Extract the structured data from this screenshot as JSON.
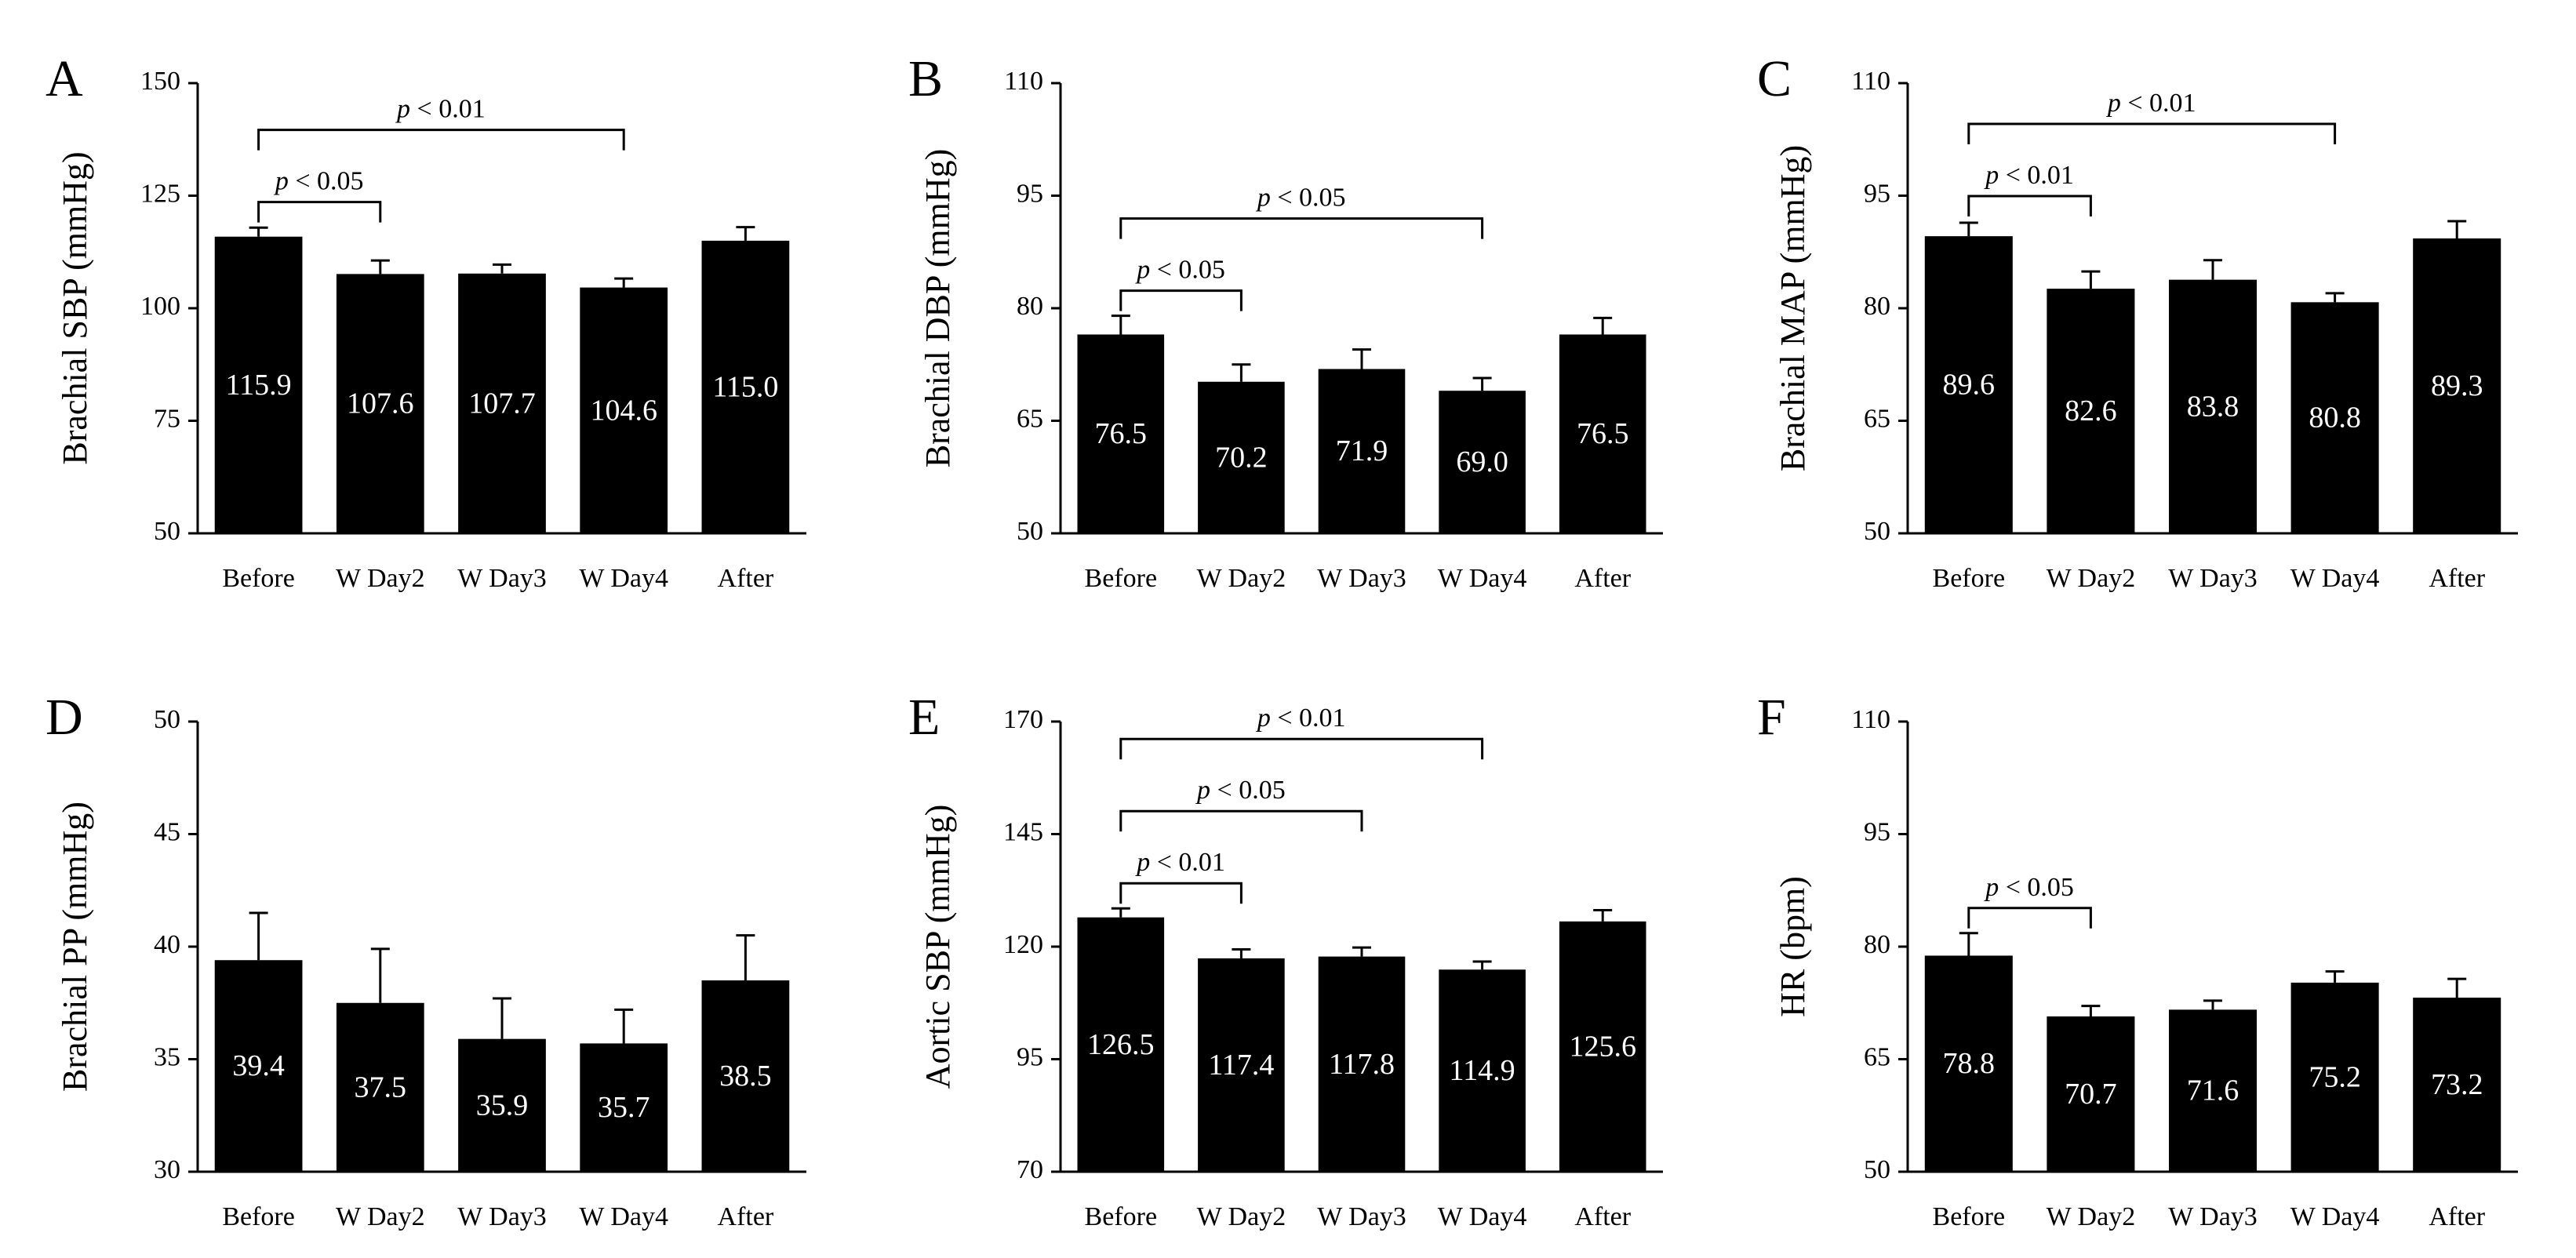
{
  "chart_data": [
    {
      "panel": "A",
      "type": "bar",
      "categories": [
        "Before",
        "W Day2",
        "W Day3",
        "W Day4",
        "After"
      ],
      "values": [
        115.9,
        107.6,
        107.7,
        104.6,
        115.0
      ],
      "value_labels": [
        "115.9",
        "107.6",
        "107.7",
        "104.6",
        "115.0"
      ],
      "errors": [
        2.0,
        3.0,
        2.0,
        2.0,
        3.0
      ],
      "ylabel": "Brachial SBP (mmHg)",
      "ylim": [
        50,
        150
      ],
      "yticks": [
        "50",
        "75",
        "100",
        "125",
        "150"
      ],
      "significance": [
        {
          "from": 0,
          "to": 1,
          "label": "p < 0.05",
          "level": 1
        },
        {
          "from": 0,
          "to": 3,
          "label": "p < 0.01",
          "level": 2
        }
      ]
    },
    {
      "panel": "B",
      "type": "bar",
      "categories": [
        "Before",
        "W Day2",
        "W Day3",
        "W Day4",
        "After"
      ],
      "values": [
        76.5,
        70.2,
        71.9,
        69.0,
        76.5
      ],
      "value_labels": [
        "76.5",
        "70.2",
        "71.9",
        "69.0",
        "76.5"
      ],
      "errors": [
        2.5,
        2.3,
        2.6,
        1.7,
        2.2
      ],
      "ylabel": "Brachial DBP (mmHg)",
      "ylim": [
        50,
        110
      ],
      "yticks": [
        "50",
        "65",
        "80",
        "95",
        "110"
      ],
      "significance": [
        {
          "from": 0,
          "to": 1,
          "label": "p < 0.05",
          "level": 1
        },
        {
          "from": 0,
          "to": 3,
          "label": "p < 0.05",
          "level": 2
        }
      ]
    },
    {
      "panel": "C",
      "type": "bar",
      "categories": [
        "Before",
        "W Day2",
        "W Day3",
        "W Day4",
        "After"
      ],
      "values": [
        89.6,
        82.6,
        83.8,
        80.8,
        89.3
      ],
      "value_labels": [
        "89.6",
        "82.6",
        "83.8",
        "80.8",
        "89.3"
      ],
      "errors": [
        1.8,
        2.3,
        2.6,
        1.2,
        2.3
      ],
      "ylabel": "Brachial MAP (mmHg)",
      "ylim": [
        50,
        110
      ],
      "yticks": [
        "50",
        "65",
        "80",
        "95",
        "110"
      ],
      "significance": [
        {
          "from": 0,
          "to": 1,
          "label": "p < 0.01",
          "level": 1
        },
        {
          "from": 0,
          "to": 3,
          "label": "p < 0.01",
          "level": 2
        }
      ]
    },
    {
      "panel": "D",
      "type": "bar",
      "categories": [
        "Before",
        "W Day2",
        "W Day3",
        "W Day4",
        "After"
      ],
      "values": [
        39.4,
        37.5,
        35.9,
        35.7,
        38.5
      ],
      "value_labels": [
        "39.4",
        "37.5",
        "35.9",
        "35.7",
        "38.5"
      ],
      "errors": [
        2.1,
        2.4,
        1.8,
        1.5,
        2.0
      ],
      "ylabel": "Brachial PP (mmHg)",
      "ylim": [
        30,
        50
      ],
      "yticks": [
        "30",
        "35",
        "40",
        "45",
        "50"
      ],
      "significance": []
    },
    {
      "panel": "E",
      "type": "bar",
      "categories": [
        "Before",
        "W Day2",
        "W Day3",
        "W Day4",
        "After"
      ],
      "values": [
        126.5,
        117.4,
        117.8,
        114.9,
        125.6
      ],
      "value_labels": [
        "126.5",
        "117.4",
        "117.8",
        "114.9",
        "125.6"
      ],
      "errors": [
        2.0,
        2.0,
        2.0,
        1.8,
        2.5
      ],
      "ylabel": "Aortic SBP (mmHg)",
      "ylim": [
        70,
        170
      ],
      "yticks": [
        "70",
        "95",
        "120",
        "145",
        "170"
      ],
      "significance": [
        {
          "from": 0,
          "to": 1,
          "label": "p < 0.01",
          "level": 1
        },
        {
          "from": 0,
          "to": 2,
          "label": "p < 0.05",
          "level": 2
        },
        {
          "from": 0,
          "to": 3,
          "label": "p < 0.01",
          "level": 3
        }
      ]
    },
    {
      "panel": "F",
      "type": "bar",
      "categories": [
        "Before",
        "W Day2",
        "W Day3",
        "W Day4",
        "After"
      ],
      "values": [
        78.8,
        70.7,
        71.6,
        75.2,
        73.2
      ],
      "value_labels": [
        "78.8",
        "70.7",
        "71.6",
        "75.2",
        "73.2"
      ],
      "errors": [
        3.0,
        1.4,
        1.2,
        1.5,
        2.5
      ],
      "ylabel": "HR (bpm)",
      "ylim": [
        50,
        110
      ],
      "yticks": [
        "50",
        "65",
        "80",
        "95",
        "110"
      ],
      "significance": [
        {
          "from": 0,
          "to": 1,
          "label": "p < 0.05",
          "level": 1
        }
      ]
    }
  ]
}
